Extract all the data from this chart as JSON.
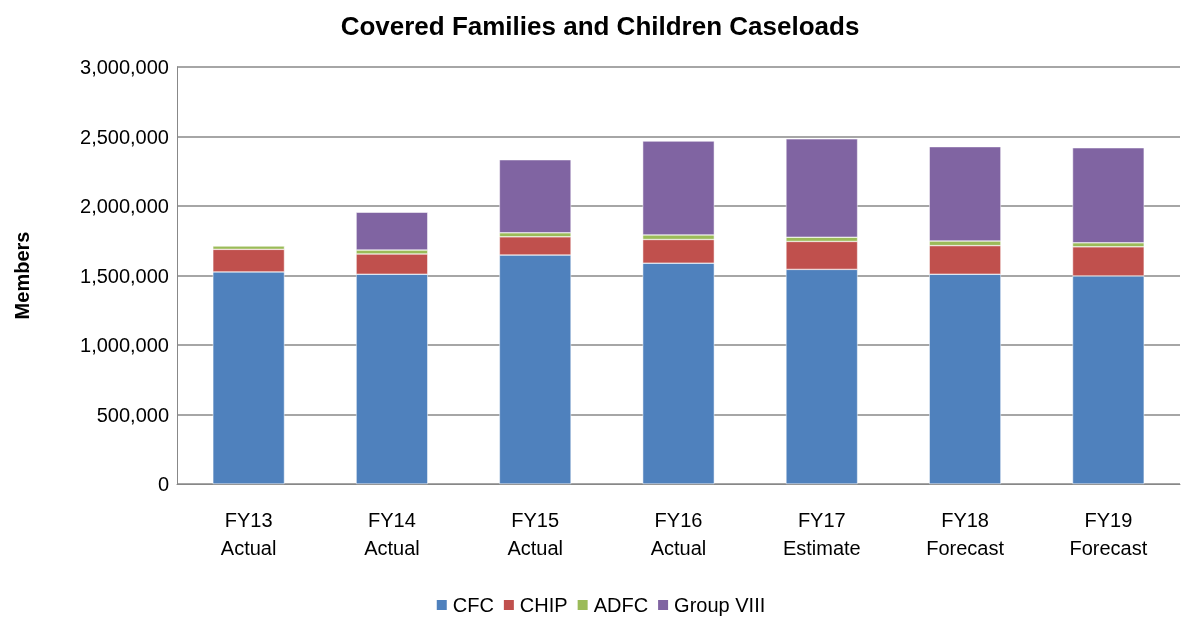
{
  "chart_data": {
    "type": "bar",
    "title": "Covered Families and Children Caseloads",
    "ylabel": "Members",
    "categories": [
      "FY13\nActual",
      "FY14\nActual",
      "FY15\nActual",
      "FY16\nActual",
      "FY17\nEstimate",
      "FY18\nForecast",
      "FY19\nForecast"
    ],
    "stacked": true,
    "series": [
      {
        "name": "CFC",
        "color": "#4f81bd",
        "values": [
          1526000,
          1509000,
          1647000,
          1589000,
          1544000,
          1509000,
          1497000
        ]
      },
      {
        "name": "CHIP",
        "color": "#c0504d",
        "values": [
          162000,
          146000,
          131000,
          170000,
          201000,
          206000,
          209000
        ]
      },
      {
        "name": "ADFC",
        "color": "#9bbb59",
        "values": [
          24000,
          28000,
          29000,
          33000,
          30000,
          33000,
          29000
        ]
      },
      {
        "name": "Group VIII",
        "color": "#8064a2",
        "values": [
          null,
          272000,
          526000,
          675000,
          708000,
          679000,
          684000
        ]
      }
    ],
    "ylim": [
      0,
      3000000
    ],
    "yticks": [
      0,
      {
        "value": 500000,
        "label": "500,000"
      },
      {
        "value": 1000000,
        "label": "1,000,000"
      },
      {
        "value": 1500000,
        "label": "1,500,000"
      },
      {
        "value": 2000000,
        "label": "2,000,000"
      },
      {
        "value": 2500000,
        "label": "2,500,000"
      },
      {
        "value": 3000000,
        "label": "3,000,000"
      }
    ],
    "grid": "y",
    "legend": "bottom"
  }
}
